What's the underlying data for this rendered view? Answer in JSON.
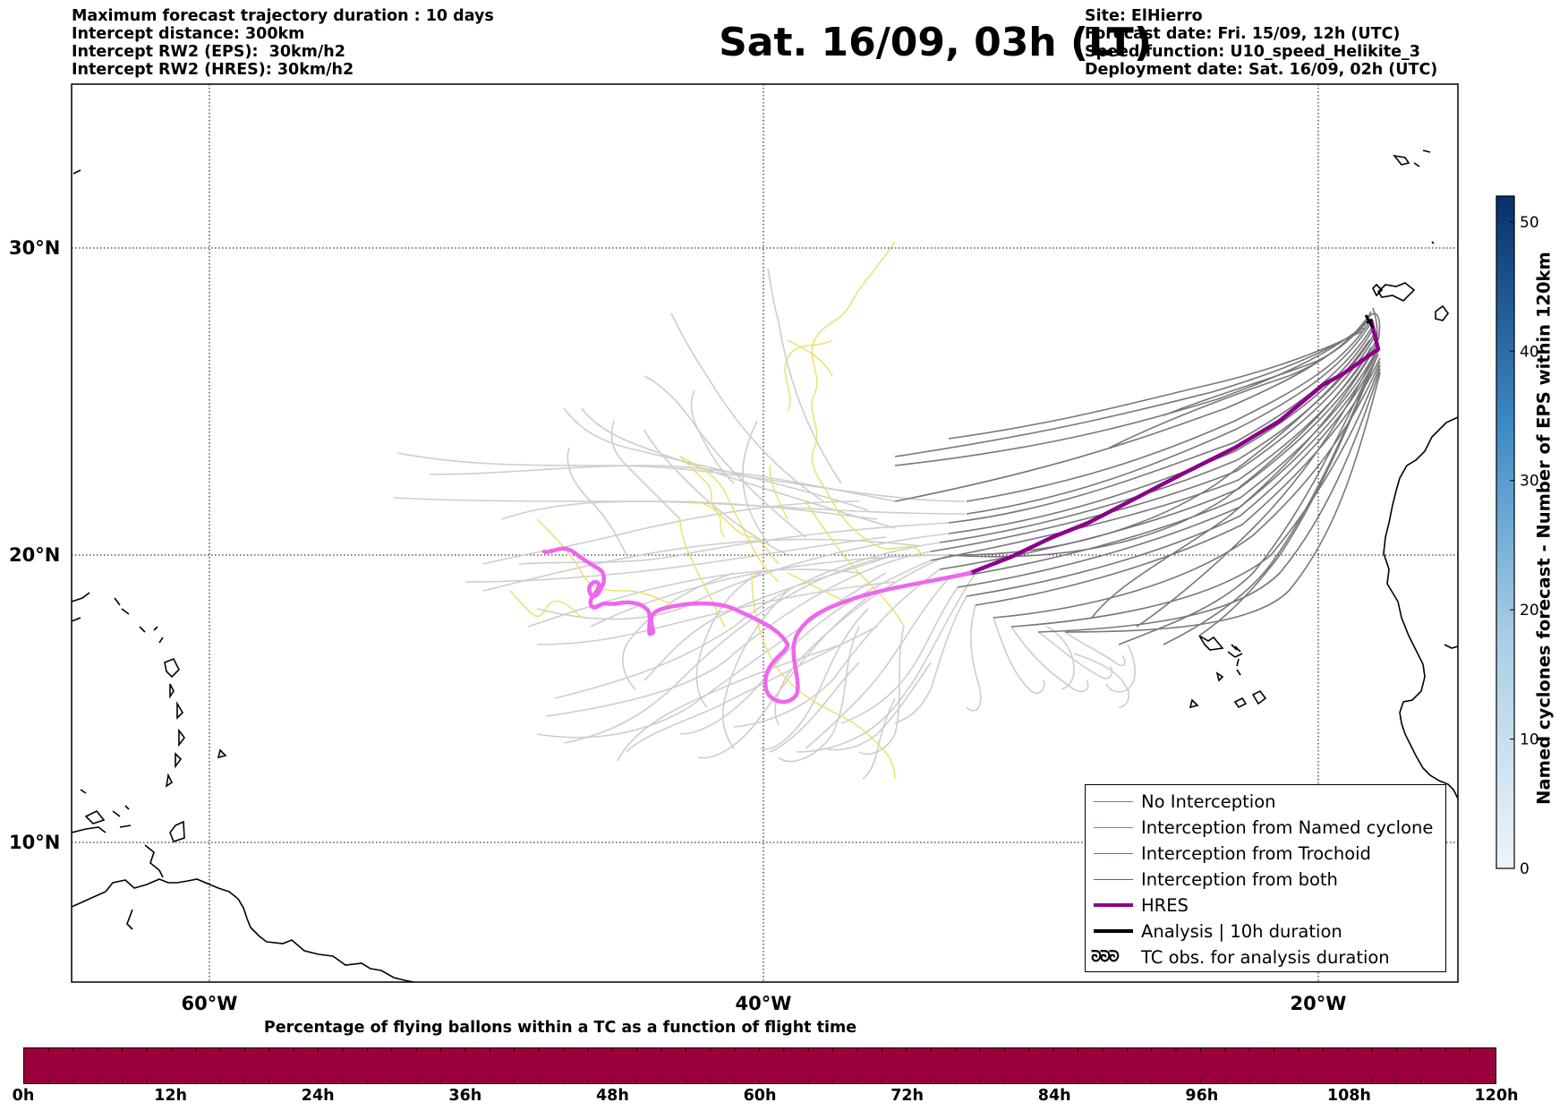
{
  "header": {
    "title": "Sat. 16/09, 03h (LT)",
    "left_lines": [
      "Maximum forecast trajectory duration : 10 days",
      "Intercept distance: 300km",
      "Intercept RW2 (EPS):  30km/h2",
      "Intercept RW2 (HRES): 30km/h2"
    ],
    "right_lines": [
      "Site: ElHierro",
      "Forecast date: Fri. 15/09, 12h (UTC)",
      "Speed function: U10_speed_Helikite_3",
      "Deployment date: Sat. 16/09, 02h (UTC)"
    ]
  },
  "map": {
    "lat_labels": [
      "30°N",
      "20°N",
      "10°N"
    ],
    "lon_labels": [
      "60°W",
      "40°W",
      "20°W"
    ],
    "colors": {
      "no_interception": "#777777",
      "no_interception_light": "#c8c8c8",
      "trochoid_track": "#e8e06a",
      "hres": "#8b008b",
      "hres_light": "#ee66ee",
      "coast": "#000000"
    }
  },
  "legend": {
    "items": [
      {
        "label": "No Interception",
        "color": "#777777",
        "style": "line"
      },
      {
        "label": "Interception from Named cyclone",
        "color": "#ff5a1f",
        "style": "line"
      },
      {
        "label": "Interception from Trochoid",
        "color": "#808000",
        "style": "line"
      },
      {
        "label": "Interception from both",
        "color": "#2e8b2e",
        "style": "line"
      },
      {
        "label": "HRES",
        "color": "#8b008b",
        "style": "thick"
      },
      {
        "label": "Analysis | 10h duration",
        "color": "#000000",
        "style": "thick"
      },
      {
        "label": "TC obs. for analysis duration",
        "color": "#000000",
        "style": "glyph",
        "glyph": "ᘐᘐᘐ"
      }
    ]
  },
  "colorbar": {
    "label": "Named cyclones forecast - Number of EPS within 120km",
    "ticks": [
      "0",
      "10",
      "20",
      "30",
      "40",
      "50"
    ],
    "range": [
      0,
      52
    ]
  },
  "timebar": {
    "title": "Percentage of flying ballons within a TC as a function of flight time",
    "ticks": [
      "0h",
      "12h",
      "24h",
      "36h",
      "48h",
      "60h",
      "72h",
      "84h",
      "96h",
      "108h",
      "120h"
    ],
    "percentage": 100,
    "color": "#9b003c"
  }
}
